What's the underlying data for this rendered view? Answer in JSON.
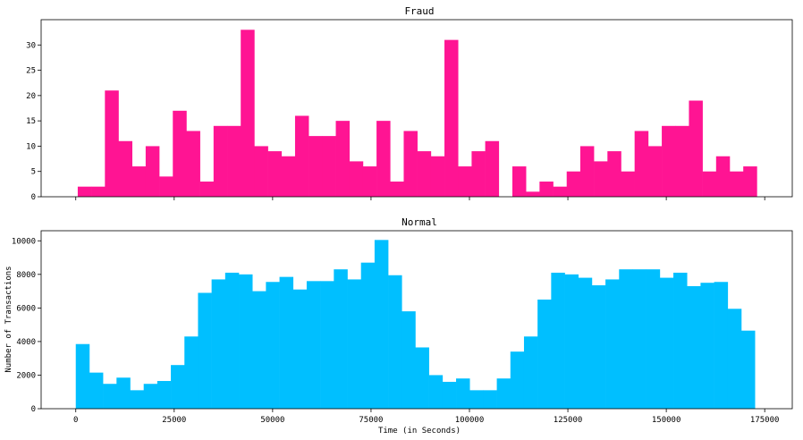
{
  "chart_data": [
    {
      "type": "bar",
      "title": "Fraud",
      "color": "#ff1493",
      "bin_width": 3450,
      "x_start": 500,
      "values": [
        2,
        2,
        21,
        11,
        6,
        10,
        4,
        17,
        13,
        3,
        14,
        14,
        33,
        10,
        9,
        8,
        16,
        12,
        12,
        15,
        7,
        6,
        15,
        3,
        13,
        9,
        8,
        31,
        6,
        9,
        11,
        0,
        6,
        1,
        3,
        2,
        5,
        10,
        7,
        9,
        5,
        13,
        10,
        14,
        14,
        19,
        5,
        8,
        5,
        6
      ],
      "xlim": [
        -8800,
        182000
      ],
      "ylim": [
        0,
        35
      ],
      "yticks": [
        0,
        5,
        10,
        15,
        20,
        25,
        30
      ],
      "xticks": [
        0,
        25000,
        50000,
        75000,
        100000,
        125000,
        150000,
        175000
      ],
      "xlabel": "",
      "ylabel": ""
    },
    {
      "type": "bar",
      "title": "Normal",
      "color": "#00bfff",
      "bin_width": 3450,
      "x_start": 0,
      "values": [
        3850,
        2150,
        1480,
        1850,
        1100,
        1480,
        1650,
        2600,
        4300,
        6900,
        7700,
        8100,
        8000,
        7000,
        7550,
        7850,
        7100,
        7600,
        7600,
        8300,
        7700,
        8700,
        10050,
        7950,
        5800,
        3650,
        2000,
        1600,
        1800,
        1100,
        1100,
        1800,
        3400,
        4300,
        6500,
        8100,
        8000,
        7800,
        7350,
        7700,
        8300,
        8300,
        8300,
        7800,
        8100,
        7300,
        7500,
        7550,
        5950,
        4650
      ],
      "xlim": [
        -8800,
        182000
      ],
      "ylim": [
        0,
        10600
      ],
      "yticks": [
        0,
        2000,
        4000,
        6000,
        8000,
        10000
      ],
      "xticks": [
        0,
        25000,
        50000,
        75000,
        100000,
        125000,
        150000,
        175000
      ],
      "xlabel": "Time (in Seconds)",
      "ylabel": "Number of Transactions"
    }
  ]
}
